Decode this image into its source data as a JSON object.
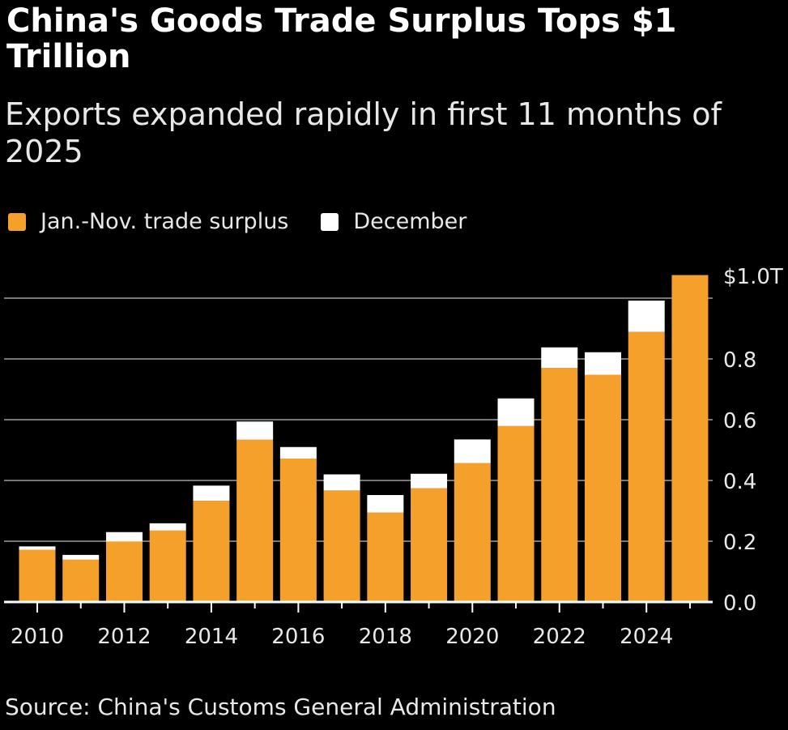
{
  "chart_data": {
    "type": "bar",
    "stacked": true,
    "title": "China's Goods Trade Surplus Tops $1 Trillion",
    "subtitle": "Exports expanded rapidly in first 11 months of 2025",
    "categories": [
      "2010",
      "2011",
      "2012",
      "2013",
      "2014",
      "2015",
      "2016",
      "2017",
      "2018",
      "2019",
      "2020",
      "2021",
      "2022",
      "2023",
      "2024",
      "2025"
    ],
    "x_tick_labels": [
      "2010",
      "2012",
      "2014",
      "2016",
      "2018",
      "2020",
      "2022",
      "2024"
    ],
    "series": [
      {
        "name": "Jan.-Nov. trade surplus",
        "color": "#f5a02a",
        "values": [
          0.172,
          0.139,
          0.199,
          0.235,
          0.333,
          0.534,
          0.472,
          0.367,
          0.294,
          0.374,
          0.457,
          0.579,
          0.77,
          0.748,
          0.889,
          1.076
        ]
      },
      {
        "name": "December",
        "color": "#ffffff",
        "values": [
          0.011,
          0.016,
          0.031,
          0.024,
          0.05,
          0.06,
          0.038,
          0.053,
          0.058,
          0.048,
          0.078,
          0.091,
          0.068,
          0.074,
          0.103,
          null
        ]
      }
    ],
    "y_tick_labels": [
      "0.0",
      "0.2",
      "0.4",
      "0.6",
      "0.8",
      "$1.0T"
    ],
    "y_ticks": [
      0,
      0.2,
      0.4,
      0.6,
      0.8,
      1.0
    ],
    "ylim": [
      0,
      1.0
    ],
    "y_axis_position": "right",
    "grid": true,
    "legend_position": "top-left",
    "xlabel": "",
    "ylabel": "",
    "source": "Source: China's Customs General Administration"
  }
}
